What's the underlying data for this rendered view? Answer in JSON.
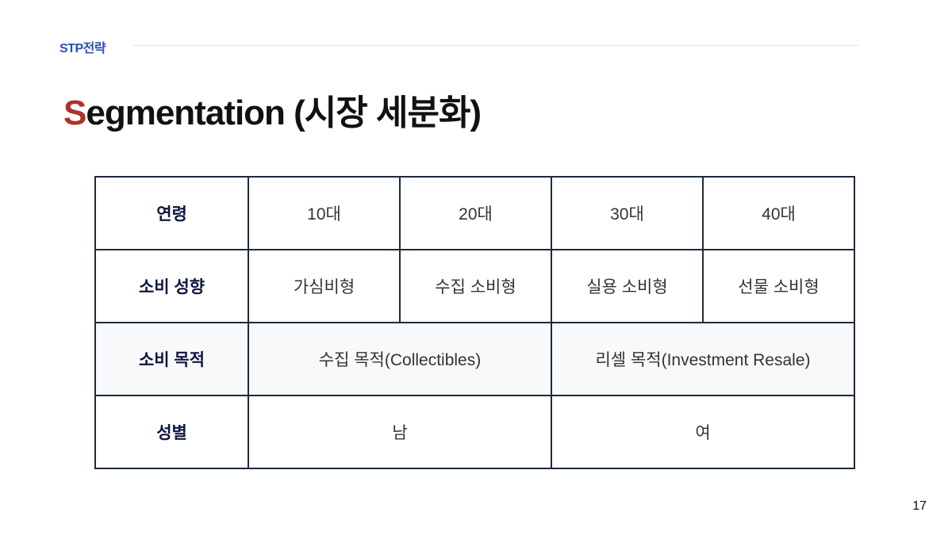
{
  "header": {
    "section": "STP전략",
    "title_first_letter": "S",
    "title_rest": "egmentation (시장 세분화)"
  },
  "colors": {
    "accent": "#b0302a",
    "section": "#2a4fb0",
    "header_text": "#0f1740",
    "border": "#1e2a3a"
  },
  "table": {
    "rows": [
      {
        "label": "연령",
        "cells": [
          "10대",
          "20대",
          "30대",
          "40대"
        ]
      },
      {
        "label": "소비 성향",
        "cells": [
          "가심비형",
          "수집 소비형",
          "실용 소비형",
          "선물 소비형"
        ]
      },
      {
        "label": "소비 목적",
        "cells": [
          "수집 목적(Collectibles)",
          "리셀 목적(Investment Resale)"
        ]
      },
      {
        "label": "성별",
        "cells": [
          "남",
          "여"
        ]
      }
    ]
  },
  "page_number": "17"
}
